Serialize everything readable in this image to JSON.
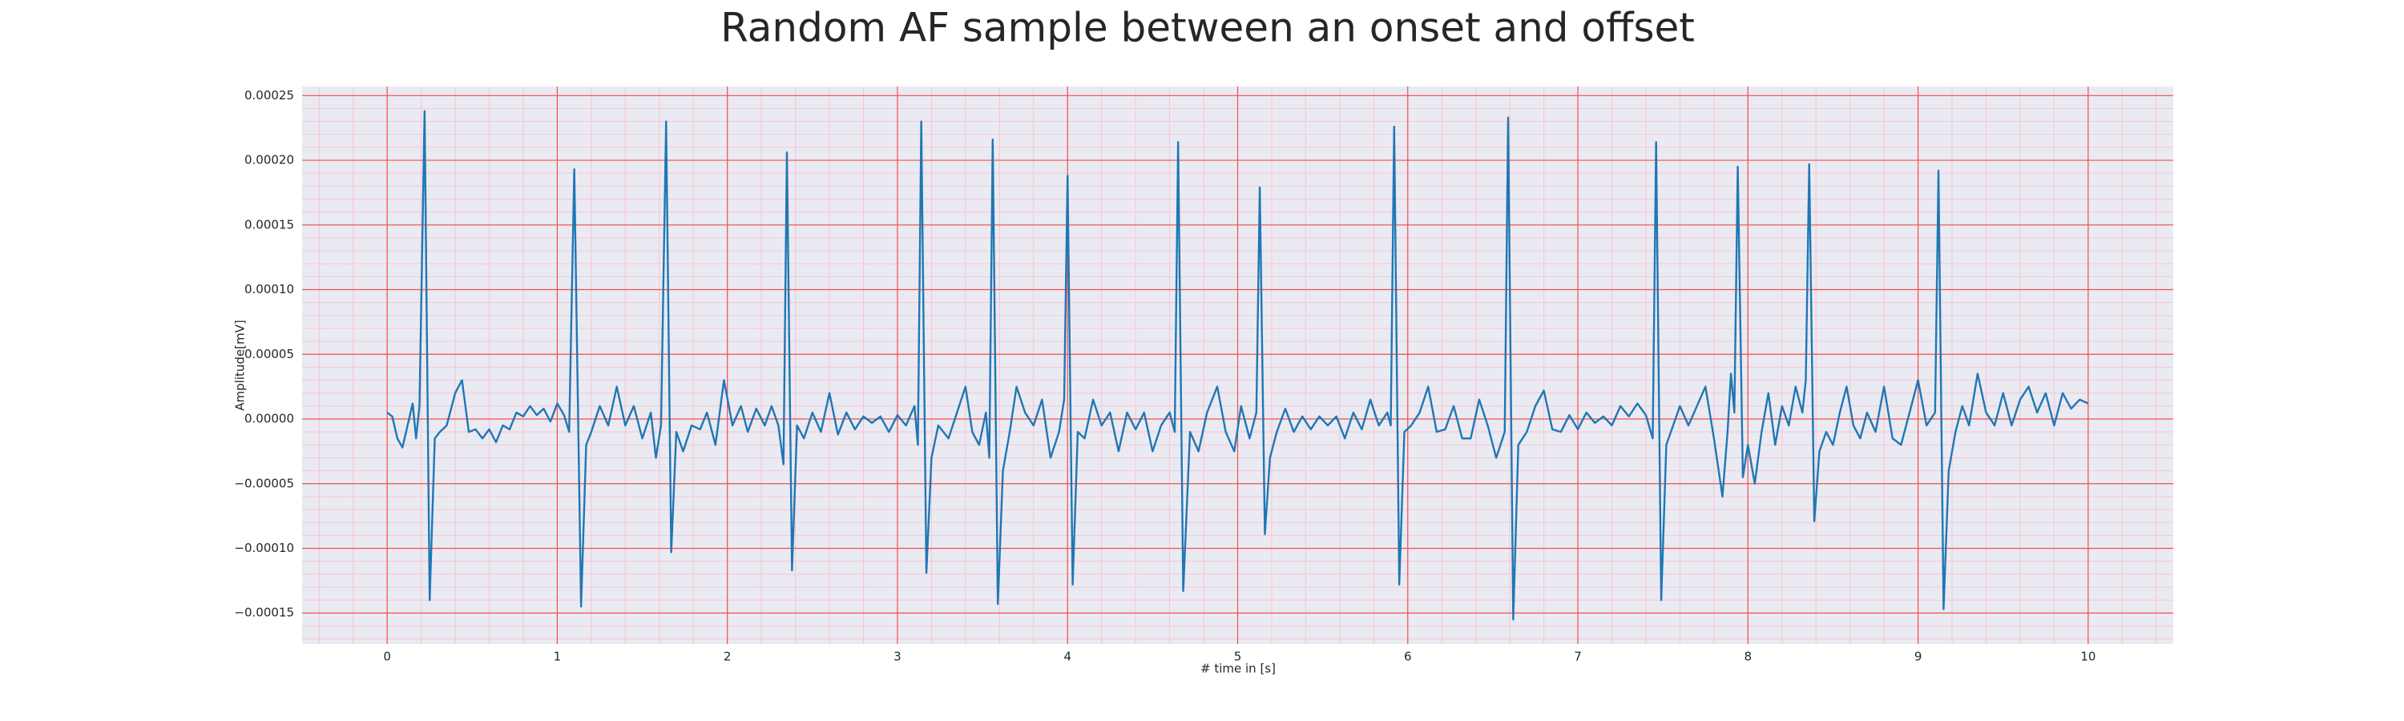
{
  "chart_data": {
    "type": "line",
    "title": "Random AF sample between an onset and offset",
    "x_label": "# time in [s]",
    "y_label": "Amplitude[mV]",
    "grid": true,
    "background": "#eaeaf2",
    "grid_color": "#f05050",
    "minor_grid_color": "#f6c6d2",
    "xlim": [
      -0.5,
      10.5
    ],
    "ylim": [
      -0.000174,
      0.000257
    ],
    "xticks": [
      0,
      1,
      2,
      3,
      4,
      5,
      6,
      7,
      8,
      9,
      10
    ],
    "yticks": [
      {
        "value": -0.00015,
        "label": "−0.00015"
      },
      {
        "value": -0.0001,
        "label": "−0.00010"
      },
      {
        "value": -5e-05,
        "label": "−0.00005"
      },
      {
        "value": 0,
        "label": "0.00000"
      },
      5e-05,
      {
        "value": 0.0001,
        "label": "0.00010"
      },
      0.00015,
      {
        "value": 0.0002,
        "label": "0.00020"
      },
      0.00025
    ],
    "x": [
      0.0,
      0.03,
      0.06,
      0.09,
      0.12,
      0.15,
      0.17,
      0.19,
      0.22,
      0.25,
      0.28,
      0.31,
      0.35,
      0.4,
      0.44,
      0.48,
      0.52,
      0.56,
      0.6,
      0.64,
      0.68,
      0.72,
      0.76,
      0.8,
      0.84,
      0.88,
      0.92,
      0.96,
      1.0,
      1.04,
      1.07,
      1.1,
      1.14,
      1.17,
      1.2,
      1.25,
      1.3,
      1.35,
      1.4,
      1.45,
      1.5,
      1.55,
      1.58,
      1.61,
      1.64,
      1.67,
      1.7,
      1.74,
      1.79,
      1.84,
      1.88,
      1.93,
      1.98,
      2.03,
      2.08,
      2.12,
      2.17,
      2.22,
      2.26,
      2.3,
      2.33,
      2.35,
      2.38,
      2.41,
      2.45,
      2.5,
      2.55,
      2.6,
      2.65,
      2.7,
      2.75,
      2.8,
      2.85,
      2.9,
      2.95,
      3.0,
      3.05,
      3.1,
      3.12,
      3.14,
      3.17,
      3.2,
      3.24,
      3.3,
      3.35,
      3.4,
      3.44,
      3.48,
      3.52,
      3.54,
      3.56,
      3.59,
      3.62,
      3.66,
      3.7,
      3.75,
      3.8,
      3.85,
      3.9,
      3.95,
      3.98,
      4.0,
      4.03,
      4.06,
      4.1,
      4.15,
      4.2,
      4.25,
      4.3,
      4.35,
      4.4,
      4.45,
      4.5,
      4.55,
      4.6,
      4.63,
      4.65,
      4.68,
      4.72,
      4.77,
      4.82,
      4.88,
      4.93,
      4.98,
      5.02,
      5.07,
      5.11,
      5.13,
      5.16,
      5.19,
      5.23,
      5.28,
      5.33,
      5.38,
      5.43,
      5.48,
      5.53,
      5.58,
      5.63,
      5.68,
      5.73,
      5.78,
      5.83,
      5.88,
      5.9,
      5.92,
      5.95,
      5.98,
      6.02,
      6.07,
      6.12,
      6.17,
      6.22,
      6.27,
      6.32,
      6.37,
      6.42,
      6.47,
      6.52,
      6.57,
      6.59,
      6.62,
      6.65,
      6.7,
      6.75,
      6.8,
      6.85,
      6.9,
      6.95,
      7.0,
      7.05,
      7.1,
      7.15,
      7.2,
      7.25,
      7.3,
      7.35,
      7.4,
      7.44,
      7.46,
      7.49,
      7.52,
      7.56,
      7.6,
      7.65,
      7.7,
      7.75,
      7.8,
      7.85,
      7.88,
      7.9,
      7.92,
      7.94,
      7.97,
      8.0,
      8.04,
      8.08,
      8.12,
      8.16,
      8.2,
      8.24,
      8.28,
      8.32,
      8.34,
      8.36,
      8.39,
      8.42,
      8.46,
      8.5,
      8.54,
      8.58,
      8.62,
      8.66,
      8.7,
      8.75,
      8.8,
      8.85,
      8.9,
      8.95,
      9.0,
      9.05,
      9.1,
      9.12,
      9.15,
      9.18,
      9.22,
      9.26,
      9.3,
      9.35,
      9.4,
      9.45,
      9.5,
      9.55,
      9.6,
      9.65,
      9.7,
      9.75,
      9.8,
      9.85,
      9.9,
      9.95,
      10.0
    ],
    "series": [
      {
        "color": "#1f77b4",
        "values": [
          5e-06,
          2e-06,
          -1.5e-05,
          -2.2e-05,
          -5e-06,
          1.2e-05,
          -1.5e-05,
          1e-05,
          0.000238,
          -0.00014,
          -1.5e-05,
          -1e-05,
          -5e-06,
          2e-05,
          3e-05,
          -1e-05,
          -8e-06,
          -1.5e-05,
          -8e-06,
          -1.8e-05,
          -5e-06,
          -8e-06,
          5e-06,
          2e-06,
          1e-05,
          3e-06,
          8e-06,
          -2e-06,
          1.2e-05,
          3e-06,
          -1e-05,
          0.000193,
          -0.000145,
          -2e-05,
          -1e-05,
          1e-05,
          -5e-06,
          2.5e-05,
          -5e-06,
          1e-05,
          -1.5e-05,
          5e-06,
          -3e-05,
          -5e-06,
          0.00023,
          -0.000103,
          -1e-05,
          -2.5e-05,
          -5e-06,
          -8e-06,
          5e-06,
          -2e-05,
          3e-05,
          -5e-06,
          1e-05,
          -1e-05,
          8e-06,
          -5e-06,
          1e-05,
          -5e-06,
          -3.5e-05,
          0.000206,
          -0.000117,
          -5e-06,
          -1.5e-05,
          5e-06,
          -1e-05,
          2e-05,
          -1.2e-05,
          5e-06,
          -8e-06,
          2e-06,
          -3e-06,
          2e-06,
          -1e-05,
          3e-06,
          -5e-06,
          1e-05,
          -2e-05,
          0.00023,
          -0.000119,
          -3e-05,
          -5e-06,
          -1.5e-05,
          5e-06,
          2.5e-05,
          -1e-05,
          -2e-05,
          5e-06,
          -3e-05,
          0.000216,
          -0.000143,
          -4e-05,
          -1e-05,
          2.5e-05,
          5e-06,
          -5e-06,
          1.5e-05,
          -3e-05,
          -1e-05,
          1.5e-05,
          0.000188,
          -0.000128,
          -1e-05,
          -1.5e-05,
          1.5e-05,
          -5e-06,
          5e-06,
          -2.5e-05,
          5e-06,
          -8e-06,
          5e-06,
          -2.5e-05,
          -5e-06,
          5e-06,
          -1e-05,
          0.000214,
          -0.000133,
          -1e-05,
          -2.5e-05,
          5e-06,
          2.5e-05,
          -1e-05,
          -2.5e-05,
          1e-05,
          -1.5e-05,
          5e-06,
          0.000179,
          -8.9e-05,
          -3e-05,
          -1e-05,
          8e-06,
          -1e-05,
          2e-06,
          -8e-06,
          2e-06,
          -5e-06,
          2e-06,
          -1.5e-05,
          5e-06,
          -8e-06,
          1.5e-05,
          -5e-06,
          5e-06,
          -5e-06,
          0.000226,
          -0.000128,
          -1e-05,
          -5e-06,
          5e-06,
          2.5e-05,
          -1e-05,
          -8e-06,
          1e-05,
          -1.5e-05,
          -1.5e-05,
          1.5e-05,
          -5e-06,
          -3e-05,
          -1e-05,
          0.000233,
          -0.000155,
          -2e-05,
          -1e-05,
          1e-05,
          2.2e-05,
          -8e-06,
          -1e-05,
          3e-06,
          -8e-06,
          5e-06,
          -3e-06,
          2e-06,
          -5e-06,
          1e-05,
          2e-06,
          1.2e-05,
          3e-06,
          -1.5e-05,
          0.000214,
          -0.00014,
          -2e-05,
          -5e-06,
          1e-05,
          -5e-06,
          1e-05,
          2.5e-05,
          -1.5e-05,
          -6e-05,
          -1e-05,
          3.5e-05,
          5e-06,
          0.000195,
          -4.5e-05,
          -2e-05,
          -5e-05,
          -1e-05,
          2e-05,
          -2e-05,
          1e-05,
          -5e-06,
          2.5e-05,
          5e-06,
          3e-05,
          0.000197,
          -7.9e-05,
          -2.5e-05,
          -1e-05,
          -2e-05,
          5e-06,
          2.5e-05,
          -5e-06,
          -1.5e-05,
          5e-06,
          -1e-05,
          2.5e-05,
          -1.5e-05,
          -2e-05,
          5e-06,
          3e-05,
          -5e-06,
          5e-06,
          0.000192,
          -0.000147,
          -4e-05,
          -1e-05,
          1e-05,
          -5e-06,
          3.5e-05,
          5e-06,
          -5e-06,
          2e-05,
          -5e-06,
          1.5e-05,
          2.5e-05,
          5e-06,
          2e-05,
          -5e-06,
          2e-05,
          8e-06,
          1.5e-05,
          1.2e-05
        ]
      }
    ]
  }
}
